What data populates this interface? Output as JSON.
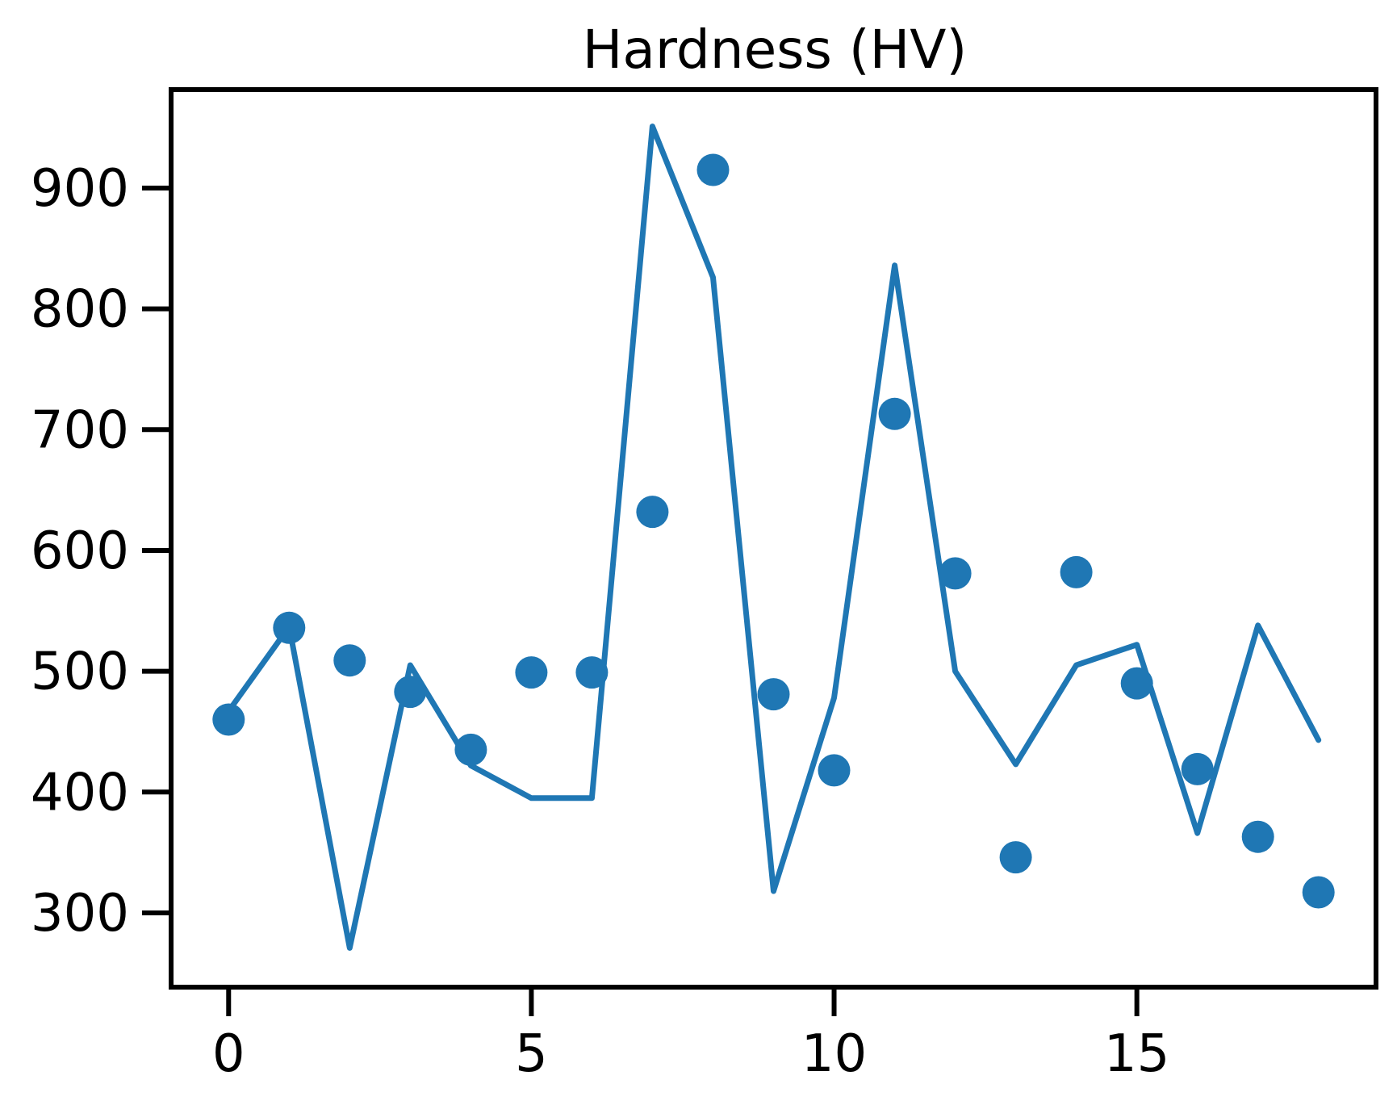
{
  "chart_data": {
    "type": "scatter",
    "title": "Hardness (HV)",
    "xlabel": "",
    "ylabel": "",
    "xlim": [
      -0.95,
      18.95
    ],
    "ylim": [
      238.5,
      981.5
    ],
    "x_ticks": [
      0,
      5,
      10,
      15
    ],
    "y_ticks": [
      300,
      400,
      500,
      600,
      700,
      800,
      900
    ],
    "grid": false,
    "legend": "none",
    "colors": {
      "series": "#1f77b4",
      "axes": "#000000"
    },
    "series": [
      {
        "kind": "line",
        "x": [
          0,
          1,
          2,
          3,
          4,
          5,
          6,
          7,
          8,
          9,
          10,
          11,
          12,
          13,
          14,
          15,
          16,
          17,
          18
        ],
        "values": [
          467,
          537,
          271,
          505,
          422,
          395,
          395,
          951,
          826,
          318,
          478,
          836,
          500,
          423,
          505,
          522,
          366,
          538,
          443
        ]
      },
      {
        "kind": "scatter",
        "x": [
          0,
          1,
          2,
          3,
          4,
          5,
          6,
          7,
          8,
          9,
          10,
          11,
          12,
          13,
          14,
          15,
          16,
          17,
          18
        ],
        "values": [
          460,
          536,
          509,
          483,
          435,
          499,
          499,
          632,
          915,
          481,
          418,
          713,
          581,
          346,
          582,
          490,
          419,
          363,
          317
        ]
      }
    ]
  }
}
